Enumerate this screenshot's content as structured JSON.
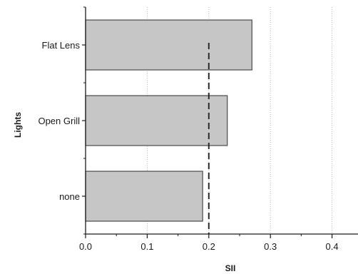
{
  "chart_data": {
    "type": "bar",
    "orientation": "horizontal",
    "title": "",
    "xlabel": "SII",
    "ylabel": "Lights",
    "categories": [
      "Flat Lens",
      "Open Grill",
      "none"
    ],
    "values": [
      0.27,
      0.23,
      0.19
    ],
    "xlim": [
      0.0,
      0.5
    ],
    "xticks": [
      "0.0",
      "0.1",
      "0.2",
      "0.3",
      "0.4"
    ],
    "grid": "vertical dotted",
    "reference_line": {
      "x": 0.2,
      "style": "dashed"
    },
    "colors": {
      "bar_fill": "#c6c6c6",
      "bar_stroke": "#4a4a4a",
      "grid": "#b5b5b5",
      "axis": "#1a1a1a",
      "reference": "#2a2a2a"
    }
  }
}
